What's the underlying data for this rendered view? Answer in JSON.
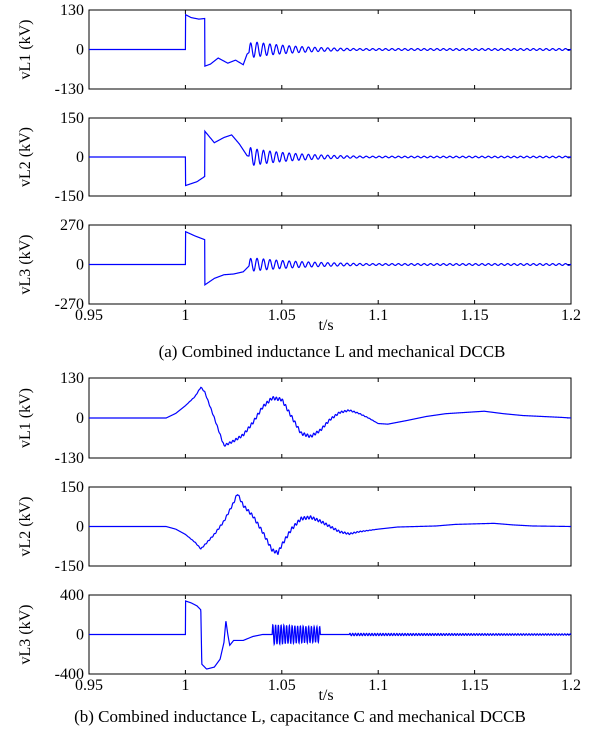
{
  "figure": {
    "caption_a": "(a) Combined inductance L and mechanical DCCB",
    "caption_b": "(b) Combined inductance L, capacitance C and mechanical DCCB",
    "xlabel": "t/s",
    "line_color": "#0000ff"
  },
  "chart_data": [
    {
      "type": "line",
      "id": "a1",
      "group": "a",
      "ylabel": "vL1 (kV)",
      "ylim": [
        -130,
        130
      ],
      "yticks": [
        "130",
        "0",
        "-130"
      ],
      "xlim": [
        0.95,
        1.2
      ],
      "xticks": [
        "0.95",
        "1",
        "1.05",
        "1.1",
        "1.15",
        "1.2"
      ],
      "show_xticks": false,
      "key_points": [
        [
          0.95,
          0
        ],
        [
          1.0,
          0
        ],
        [
          1.0,
          115
        ],
        [
          1.003,
          105
        ],
        [
          1.007,
          100
        ],
        [
          1.01,
          102
        ],
        [
          1.01,
          -55
        ],
        [
          1.013,
          -48
        ],
        [
          1.017,
          -28
        ],
        [
          1.022,
          -45
        ],
        [
          1.026,
          -35
        ],
        [
          1.03,
          -50
        ],
        [
          1.032,
          -15
        ],
        [
          1.035,
          0
        ],
        [
          1.2,
          0
        ]
      ],
      "oscillation": {
        "start": 1.033,
        "end": 1.2,
        "freq_hz": 300,
        "amp_start": 28,
        "amp_end": 3,
        "decay": 0.025
      }
    },
    {
      "type": "line",
      "id": "a2",
      "group": "a",
      "ylabel": "vL2 (kV)",
      "ylim": [
        -150,
        150
      ],
      "yticks": [
        "150",
        "0",
        "-150"
      ],
      "xlim": [
        0.95,
        1.2
      ],
      "xticks": [
        "0.95",
        "1",
        "1.05",
        "1.1",
        "1.15",
        "1.2"
      ],
      "show_xticks": false,
      "key_points": [
        [
          0.95,
          0
        ],
        [
          1.0,
          0
        ],
        [
          1.0,
          -110
        ],
        [
          1.006,
          -95
        ],
        [
          1.01,
          -75
        ],
        [
          1.01,
          100
        ],
        [
          1.015,
          55
        ],
        [
          1.02,
          75
        ],
        [
          1.024,
          85
        ],
        [
          1.028,
          50
        ],
        [
          1.032,
          5
        ],
        [
          1.035,
          0
        ],
        [
          1.2,
          0
        ]
      ],
      "oscillation": {
        "start": 1.033,
        "end": 1.2,
        "freq_hz": 300,
        "amp_start": 35,
        "amp_end": 3,
        "decay": 0.025
      }
    },
    {
      "type": "line",
      "id": "a3",
      "group": "a",
      "ylabel": "vL3 (kV)",
      "ylim": [
        -270,
        270
      ],
      "yticks": [
        "270",
        "0",
        "-270"
      ],
      "xlim": [
        0.95,
        1.2
      ],
      "xticks": [
        "0.95",
        "1",
        "1.05",
        "1.1",
        "1.15",
        "1.2"
      ],
      "show_xticks": true,
      "key_points": [
        [
          0.95,
          0
        ],
        [
          1.0,
          0
        ],
        [
          1.0,
          225
        ],
        [
          1.005,
          195
        ],
        [
          1.01,
          170
        ],
        [
          1.01,
          -140
        ],
        [
          1.015,
          -95
        ],
        [
          1.02,
          -70
        ],
        [
          1.025,
          -65
        ],
        [
          1.03,
          -50
        ],
        [
          1.033,
          -10
        ],
        [
          1.035,
          0
        ],
        [
          1.2,
          0
        ]
      ],
      "oscillation": {
        "start": 1.033,
        "end": 1.2,
        "freq_hz": 300,
        "amp_start": 48,
        "amp_end": 6,
        "decay": 0.03
      }
    },
    {
      "type": "line",
      "id": "b1",
      "group": "b",
      "ylabel": "vL1 (kV)",
      "ylim": [
        -130,
        130
      ],
      "yticks": [
        "130",
        "0",
        "-130"
      ],
      "xlim": [
        0.95,
        1.2
      ],
      "xticks": [
        "0.95",
        "1",
        "1.05",
        "1.1",
        "1.15",
        "1.2"
      ],
      "show_xticks": false,
      "key_points": [
        [
          0.95,
          0
        ],
        [
          0.99,
          0
        ],
        [
          0.995,
          15
        ],
        [
          1.0,
          40
        ],
        [
          1.005,
          70
        ],
        [
          1.008,
          100
        ],
        [
          1.01,
          85
        ],
        [
          1.015,
          0
        ],
        [
          1.02,
          -90
        ],
        [
          1.025,
          -75
        ],
        [
          1.03,
          -55
        ],
        [
          1.035,
          -15
        ],
        [
          1.04,
          35
        ],
        [
          1.045,
          65
        ],
        [
          1.05,
          60
        ],
        [
          1.055,
          5
        ],
        [
          1.06,
          -50
        ],
        [
          1.065,
          -60
        ],
        [
          1.07,
          -40
        ],
        [
          1.075,
          -5
        ],
        [
          1.08,
          18
        ],
        [
          1.085,
          25
        ],
        [
          1.09,
          15
        ],
        [
          1.095,
          0
        ],
        [
          1.1,
          -18
        ],
        [
          1.105,
          -20
        ],
        [
          1.115,
          -8
        ],
        [
          1.125,
          5
        ],
        [
          1.135,
          14
        ],
        [
          1.145,
          18
        ],
        [
          1.155,
          22
        ],
        [
          1.165,
          14
        ],
        [
          1.175,
          8
        ],
        [
          1.185,
          5
        ],
        [
          1.195,
          2
        ],
        [
          1.2,
          0
        ]
      ],
      "jitter": {
        "start": 1.0,
        "end": 1.1,
        "freq_hz": 620,
        "amp": 5
      }
    },
    {
      "type": "line",
      "id": "b2",
      "group": "b",
      "ylabel": "vL2 (kV)",
      "ylim": [
        -150,
        150
      ],
      "yticks": [
        "150",
        "0",
        "-150"
      ],
      "xlim": [
        0.95,
        1.2
      ],
      "xticks": [
        "0.95",
        "1",
        "1.05",
        "1.1",
        "1.15",
        "1.2"
      ],
      "show_xticks": false,
      "key_points": [
        [
          0.95,
          0
        ],
        [
          0.99,
          0
        ],
        [
          0.995,
          -10
        ],
        [
          1.0,
          -30
        ],
        [
          1.005,
          -60
        ],
        [
          1.008,
          -85
        ],
        [
          1.01,
          -70
        ],
        [
          1.015,
          -30
        ],
        [
          1.02,
          20
        ],
        [
          1.025,
          90
        ],
        [
          1.027,
          125
        ],
        [
          1.03,
          80
        ],
        [
          1.035,
          40
        ],
        [
          1.04,
          -20
        ],
        [
          1.045,
          -90
        ],
        [
          1.048,
          -100
        ],
        [
          1.05,
          -70
        ],
        [
          1.055,
          -10
        ],
        [
          1.06,
          30
        ],
        [
          1.065,
          35
        ],
        [
          1.07,
          20
        ],
        [
          1.075,
          0
        ],
        [
          1.08,
          -20
        ],
        [
          1.085,
          -28
        ],
        [
          1.09,
          -20
        ],
        [
          1.1,
          -10
        ],
        [
          1.11,
          -2
        ],
        [
          1.12,
          0
        ],
        [
          1.13,
          2
        ],
        [
          1.14,
          8
        ],
        [
          1.15,
          10
        ],
        [
          1.16,
          12
        ],
        [
          1.17,
          6
        ],
        [
          1.18,
          2
        ],
        [
          1.2,
          0
        ]
      ],
      "jitter": {
        "start": 1.0,
        "end": 1.1,
        "freq_hz": 620,
        "amp": 6
      }
    },
    {
      "type": "line",
      "id": "b3",
      "group": "b",
      "ylabel": "vL3 (kV)",
      "ylim": [
        -400,
        400
      ],
      "yticks": [
        "400",
        "0",
        "-400"
      ],
      "xlim": [
        0.95,
        1.2
      ],
      "xticks": [
        "0.95",
        "1",
        "1.05",
        "1.1",
        "1.15",
        "1.2"
      ],
      "show_xticks": true,
      "key_points": [
        [
          0.95,
          0
        ],
        [
          1.0,
          0
        ],
        [
          1.0,
          340
        ],
        [
          1.003,
          320
        ],
        [
          1.006,
          290
        ],
        [
          1.008,
          250
        ],
        [
          1.0085,
          -300
        ],
        [
          1.011,
          -350
        ],
        [
          1.015,
          -330
        ],
        [
          1.018,
          -250
        ],
        [
          1.02,
          -80
        ],
        [
          1.021,
          140
        ],
        [
          1.022,
          0
        ],
        [
          1.023,
          -110
        ],
        [
          1.025,
          -60
        ],
        [
          1.03,
          -60
        ],
        [
          1.035,
          -20
        ],
        [
          1.04,
          0
        ],
        [
          1.045,
          0
        ],
        [
          1.07,
          0
        ],
        [
          1.2,
          0
        ]
      ],
      "oscillation": {
        "start": 1.045,
        "end": 1.07,
        "freq_hz": 700,
        "amp_start": 100,
        "amp_end": 80,
        "decay": 0.1
      },
      "oscillation2": {
        "start": 1.085,
        "end": 1.2,
        "freq_hz": 700,
        "amp_start": 12,
        "amp_end": 5,
        "decay": 0.2
      }
    }
  ]
}
